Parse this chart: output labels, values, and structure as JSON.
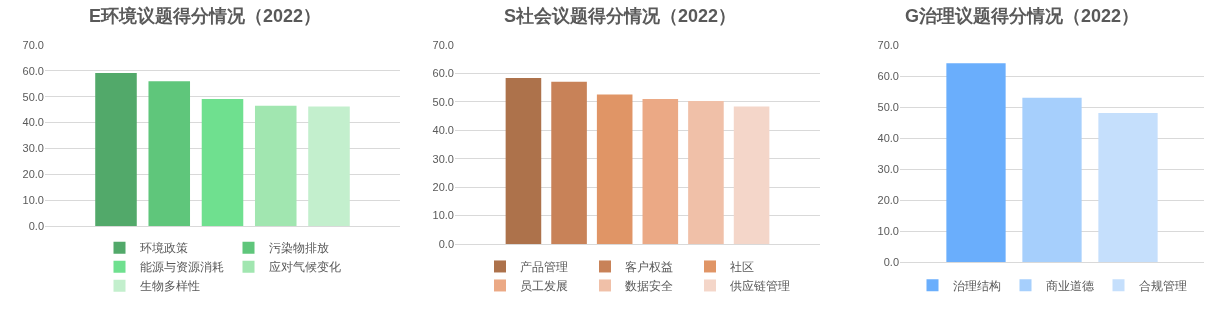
{
  "chart_data": [
    {
      "type": "bar",
      "title": "E环境议题得分情况（2022）",
      "categories": [
        null
      ],
      "series": [
        {
          "name": "环境政策",
          "color": "#52a96a",
          "values": [
            59.2
          ]
        },
        {
          "name": "污染物排放",
          "color": "#5fc67b",
          "values": [
            56.0
          ]
        },
        {
          "name": "能源与资源消耗",
          "color": "#6fe08f",
          "values": [
            49.1
          ]
        },
        {
          "name": "应对气候变化",
          "color": "#a1e6b0",
          "values": [
            46.5
          ]
        },
        {
          "name": "生物多样性",
          "color": "#c3efcd",
          "values": [
            46.2
          ]
        }
      ],
      "ylim": [
        0,
        70
      ],
      "yticks": [
        {
          "value": 0,
          "label": "0.0"
        },
        {
          "value": 10,
          "label": "10.0"
        },
        {
          "value": 20,
          "label": "20.0"
        },
        {
          "value": 30,
          "label": "30.0"
        },
        {
          "value": 40,
          "label": "40.0"
        },
        {
          "value": 50,
          "label": "50.0"
        },
        {
          "value": 60,
          "label": "60.0"
        },
        {
          "value": 70,
          "label": "70.0"
        }
      ],
      "grid": "y",
      "legend": "bottom",
      "tick_labels": "y"
    },
    {
      "type": "bar",
      "title": "S社会议题得分情况（2022）",
      "categories": [
        null
      ],
      "series": [
        {
          "name": "产品管理",
          "color": "#ad724b",
          "values": [
            58.4
          ]
        },
        {
          "name": "客户权益",
          "color": "#c88258",
          "values": [
            57.1
          ]
        },
        {
          "name": "社区",
          "color": "#e09566",
          "values": [
            52.6
          ]
        },
        {
          "name": "员工发展",
          "color": "#eba985",
          "values": [
            51.0
          ]
        },
        {
          "name": "数据安全",
          "color": "#f0c0a8",
          "values": [
            50.3
          ]
        },
        {
          "name": "供应链管理",
          "color": "#f4d6c9",
          "values": [
            48.4
          ]
        }
      ],
      "ylim": [
        0,
        70
      ],
      "yticks": [
        {
          "value": 0,
          "label": "0.0"
        },
        {
          "value": 10,
          "label": "10.0"
        },
        {
          "value": 20,
          "label": "20.0"
        },
        {
          "value": 30,
          "label": "30.0"
        },
        {
          "value": 40,
          "label": "40.0"
        },
        {
          "value": 50,
          "label": "50.0"
        },
        {
          "value": 60,
          "label": "60.0"
        },
        {
          "value": 70,
          "label": "70.0"
        }
      ],
      "grid": "y",
      "legend": "bottom",
      "tick_labels": "y"
    },
    {
      "type": "bar",
      "title": "G治理议题得分情况（2022）",
      "categories": [
        null
      ],
      "series": [
        {
          "name": "治理结构",
          "color": "#6aaefc",
          "values": [
            64.1
          ]
        },
        {
          "name": "商业道德",
          "color": "#a6cffc",
          "values": [
            53.0
          ]
        },
        {
          "name": "合规管理",
          "color": "#c5dffc",
          "values": [
            48.1
          ]
        }
      ],
      "ylim": [
        0,
        70
      ],
      "yticks": [
        {
          "value": 0,
          "label": "0.0"
        },
        {
          "value": 10,
          "label": "10.0"
        },
        {
          "value": 20,
          "label": "20.0"
        },
        {
          "value": 30,
          "label": "30.0"
        },
        {
          "value": 40,
          "label": "40.0"
        },
        {
          "value": 50,
          "label": "50.0"
        },
        {
          "value": 60,
          "label": "60.0"
        },
        {
          "value": 70,
          "label": "70.0"
        }
      ],
      "grid": "y",
      "legend": "bottom",
      "tick_labels": "y"
    }
  ]
}
